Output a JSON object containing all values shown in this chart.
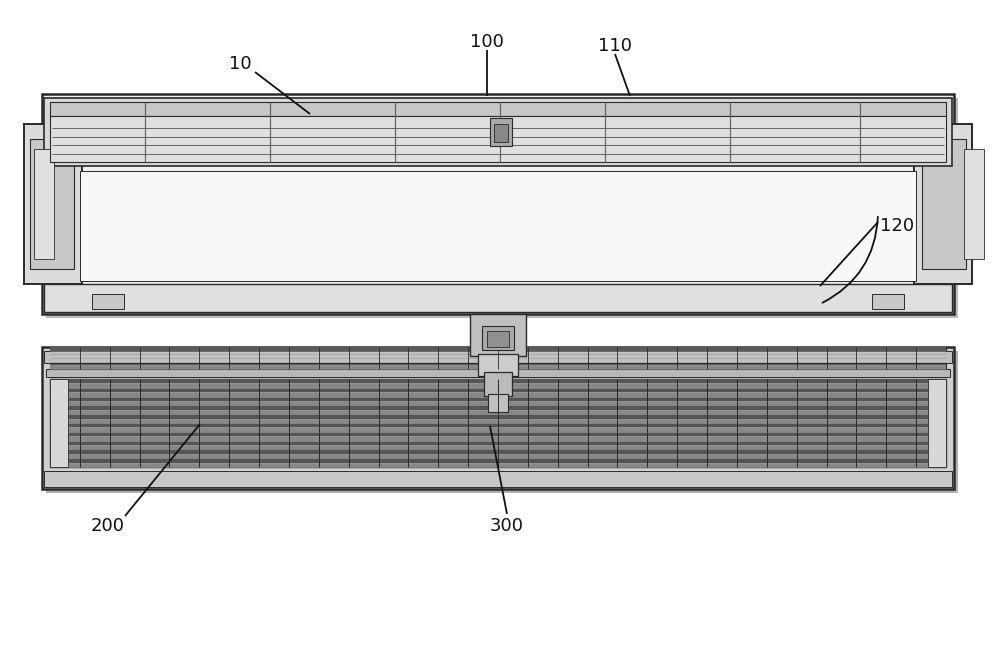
{
  "bg_color": "#ffffff",
  "lc": "#2a2a2a",
  "lc_light": "#666666",
  "body_fc": "#f2f2f2",
  "body_shadow": "#c8c8c8",
  "grille_fc": "#d0d0d0",
  "grille_dark": "#888888",
  "side_fc": "#d8d8d8",
  "louver_dark": "#4a4a4a",
  "louver_mid": "#7a7a7a",
  "louver_light": "#aaaaaa",
  "connector_fc": "#b8b8b8",
  "label_fontsize": 13,
  "figsize": [
    10.0,
    6.54
  ],
  "ann_color": "#111111"
}
